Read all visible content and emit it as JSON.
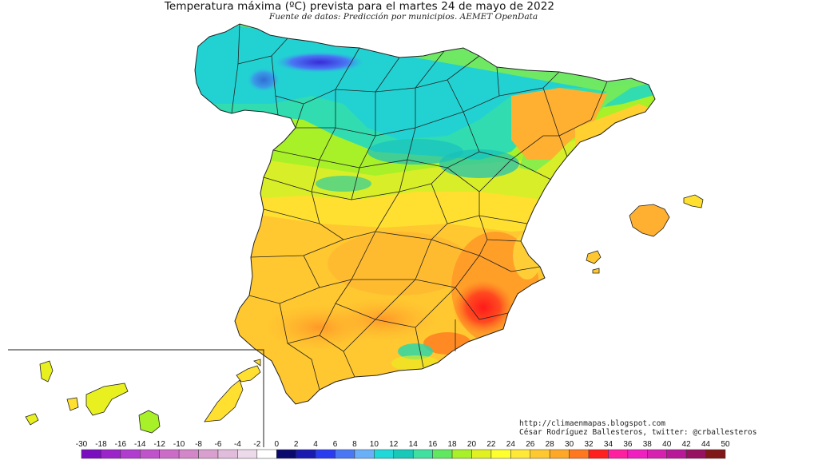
{
  "title": "Temperatura máxima (ºC) prevista para el martes 24 de mayo de 2022",
  "subtitle": "Fuente de datos: Predicción por municipios. AEMET OpenData",
  "credits": {
    "blog": "http://climaenmapas.blogspot.com",
    "author": "César Rodríguez Ballesteros, twitter: @crballesteros"
  },
  "legend": {
    "unit": "ºC",
    "ticks": [
      "-30",
      "-18",
      "-16",
      "-14",
      "-12",
      "-10",
      "-8",
      "-6",
      "-4",
      "-2",
      "0",
      "2",
      "4",
      "6",
      "8",
      "10",
      "12",
      "14",
      "16",
      "18",
      "20",
      "22",
      "24",
      "26",
      "28",
      "30",
      "32",
      "34",
      "36",
      "38",
      "40",
      "42",
      "44",
      "50"
    ],
    "colors": [
      "#7a0dbf",
      "#9c25c9",
      "#b03dd0",
      "#c053cc",
      "#cc6cc9",
      "#d386c8",
      "#d9a0cf",
      "#e1bcdc",
      "#ecdaea",
      "#ffffff",
      "#0a0a6e",
      "#1a1ab0",
      "#2a3cf0",
      "#4a78f4",
      "#6ab0f8",
      "#20d8d8",
      "#18c8b8",
      "#40e0a0",
      "#60e860",
      "#a8f028",
      "#e0f020",
      "#ffff30",
      "#ffe838",
      "#ffc830",
      "#ffa828",
      "#ff7820",
      "#ff2020",
      "#ff20a0",
      "#f020c0",
      "#d820b0",
      "#b81898",
      "#981060",
      "#801818"
    ]
  },
  "map": {
    "regions": [
      "Península Ibérica",
      "Islas Baleares",
      "Islas Canarias"
    ]
  },
  "colors": {
    "cold": "#20d8d8",
    "mild": "#a8f028",
    "warm": "#ffe838",
    "hot": "#ffa828",
    "very_hot": "#ff2020",
    "border": "#222222"
  }
}
